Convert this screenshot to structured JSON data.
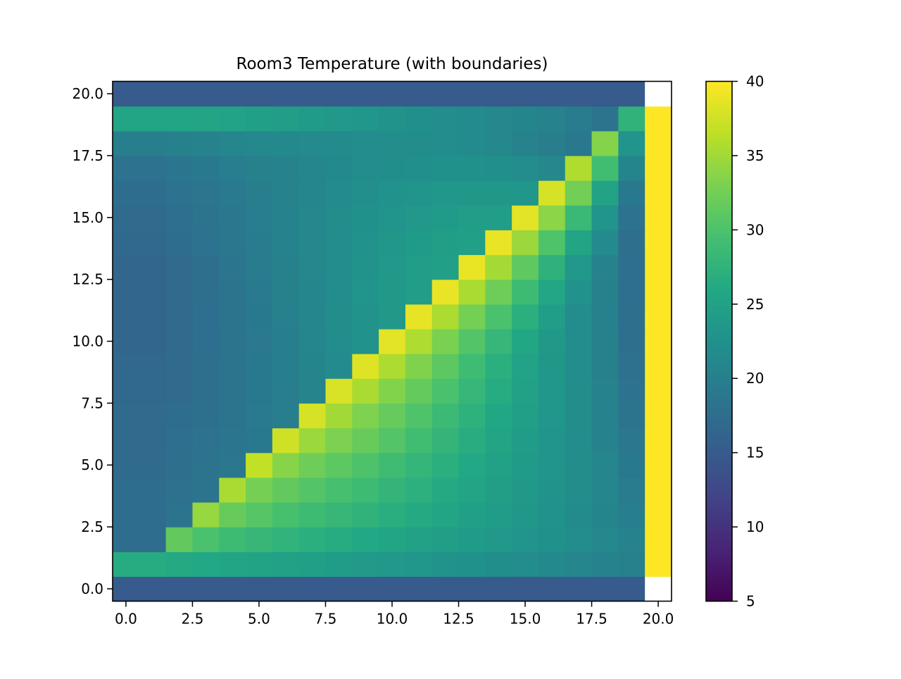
{
  "chart_data": {
    "type": "heatmap",
    "title": "Room3 Temperature (with boundaries)",
    "xlabel": "",
    "ylabel": "",
    "x_range": [
      -0.5,
      20.5
    ],
    "y_range": [
      -0.5,
      20.5
    ],
    "x_ticks": [
      0.0,
      2.5,
      5.0,
      7.5,
      10.0,
      12.5,
      15.0,
      17.5,
      20.0
    ],
    "x_tick_labels": [
      "0.0",
      "2.5",
      "5.0",
      "7.5",
      "10.0",
      "12.5",
      "15.0",
      "17.5",
      "20.0"
    ],
    "y_ticks": [
      0.0,
      2.5,
      5.0,
      7.5,
      10.0,
      12.5,
      15.0,
      17.5,
      20.0
    ],
    "y_tick_labels": [
      "0.0",
      "2.5",
      "5.0",
      "7.5",
      "10.0",
      "12.5",
      "15.0",
      "17.5",
      "20.0"
    ],
    "colormap": "viridis",
    "color_range": [
      5,
      40
    ],
    "colorbar_ticks": [
      5,
      10,
      15,
      20,
      25,
      30,
      35,
      40
    ],
    "colorbar_tick_labels": [
      "5",
      "10",
      "15",
      "20",
      "25",
      "30",
      "35",
      "40"
    ],
    "grid": false,
    "nan_color": "#ffffff",
    "rows_note": "rows listed from y=0 (bottom) to y=20 (top); columns x=0..20; null = blank cell",
    "values": [
      [
        15,
        15,
        15,
        15,
        15,
        15,
        15,
        15,
        15,
        15,
        15,
        15,
        15,
        15,
        15,
        15,
        15,
        15,
        15,
        15,
        null
      ],
      [
        26.5,
        26.5,
        26.2,
        26,
        25.6,
        25.3,
        24.9,
        24.6,
        24.2,
        23.9,
        23.5,
        23.2,
        22.8,
        22.5,
        22.1,
        21.8,
        21.4,
        21,
        20.6,
        20.3,
        40
      ],
      [
        17.5,
        17.5,
        31.5,
        29.8,
        28.9,
        28.2,
        27.6,
        27,
        26.5,
        26,
        25.5,
        25,
        24.5,
        24,
        23.5,
        23,
        22.5,
        22,
        21.3,
        20.5,
        40
      ],
      [
        17.5,
        17.5,
        18.5,
        34.5,
        31.8,
        30.6,
        29.7,
        28.9,
        28.2,
        27.5,
        26.8,
        26.2,
        25.5,
        24.8,
        24.1,
        23.4,
        22.6,
        21.7,
        20.8,
        20,
        40
      ],
      [
        17.5,
        17.5,
        18,
        18.5,
        35.5,
        32.7,
        31.5,
        30.5,
        29.6,
        28.8,
        27.9,
        27.1,
        26.2,
        25.4,
        24.5,
        23.7,
        22.8,
        21.9,
        20.9,
        19.5,
        40
      ],
      [
        17.2,
        17.2,
        17.8,
        18.3,
        18.8,
        36.8,
        33.7,
        32.2,
        31.1,
        30.1,
        29.1,
        28,
        27,
        26,
        25,
        24,
        23,
        21.9,
        20.9,
        19.2,
        40
      ],
      [
        17,
        17,
        17.6,
        18.1,
        18.6,
        19.2,
        37.5,
        34.7,
        33.1,
        31.8,
        30.5,
        29.2,
        27.9,
        26.7,
        25.4,
        24.2,
        23,
        21.8,
        20.6,
        18.8,
        40
      ],
      [
        17,
        17,
        17.4,
        17.9,
        18.5,
        19.1,
        19.8,
        37.8,
        35.1,
        33.2,
        31.7,
        30.2,
        28.7,
        27.3,
        25.9,
        24.6,
        23.2,
        21.9,
        20.5,
        18.5,
        40
      ],
      [
        16.8,
        16.8,
        17.2,
        17.8,
        18.4,
        19.2,
        19.9,
        20.7,
        38,
        35.5,
        33.4,
        31.6,
        29.8,
        28.1,
        26.5,
        24.9,
        23.4,
        21.9,
        20.4,
        18.2,
        40
      ],
      [
        16.8,
        16.8,
        17.2,
        17.7,
        18.4,
        19.2,
        20,
        20.8,
        21.6,
        38.3,
        35.6,
        33.3,
        31.1,
        29,
        27,
        25.1,
        23.4,
        21.8,
        20.3,
        18,
        40
      ],
      [
        16.5,
        16.5,
        17,
        17.6,
        18.3,
        19.1,
        20,
        20.9,
        21.8,
        22.6,
        38.6,
        35.7,
        33,
        30.5,
        28.1,
        25.8,
        23.7,
        21.8,
        20.2,
        17.8,
        40
      ],
      [
        16.5,
        16.5,
        17,
        17.6,
        18.4,
        19.2,
        20.1,
        21,
        21.9,
        22.8,
        23.6,
        38.8,
        35.6,
        32.6,
        29.8,
        27,
        24.4,
        22,
        20.1,
        17.7,
        40
      ],
      [
        16.5,
        16.5,
        17,
        17.7,
        18.5,
        19.3,
        20.2,
        21.1,
        22,
        22.9,
        23.7,
        24.4,
        38.9,
        35.5,
        32.2,
        28.9,
        25.7,
        22.6,
        20.3,
        17.6,
        40
      ],
      [
        16.5,
        16.5,
        17.1,
        17.8,
        18.6,
        19.4,
        20.3,
        21.2,
        22,
        22.8,
        23.6,
        24.3,
        24.8,
        38.9,
        35.2,
        31.3,
        27.4,
        23.6,
        20.6,
        17.6,
        40
      ],
      [
        16.8,
        16.8,
        17.4,
        18.1,
        18.8,
        19.6,
        20.4,
        21.2,
        22,
        22.7,
        23.4,
        24,
        24.5,
        24.8,
        38.9,
        34.8,
        30.2,
        25.4,
        21.5,
        17.7,
        40
      ],
      [
        17,
        17,
        17.6,
        18.3,
        19,
        19.8,
        20.5,
        21.2,
        21.9,
        22.5,
        23.1,
        23.6,
        24,
        24.3,
        24.4,
        38.6,
        33.9,
        28.5,
        22.9,
        18.2,
        40
      ],
      [
        17.5,
        17.5,
        18.1,
        18.7,
        19.3,
        19.9,
        20.5,
        21.1,
        21.6,
        22.2,
        22.6,
        23,
        23.3,
        23.4,
        23.4,
        23.2,
        37.8,
        32.5,
        25.3,
        19.2,
        40
      ],
      [
        18.2,
        18.2,
        18.7,
        19.2,
        19.7,
        20.2,
        20.6,
        21,
        21.4,
        21.8,
        22.1,
        22.4,
        22.5,
        22.5,
        22.4,
        22,
        21.3,
        35.8,
        29.2,
        20.8,
        40
      ],
      [
        20,
        20,
        20.3,
        20.6,
        20.9,
        21.2,
        21.4,
        21.5,
        21.7,
        21.8,
        21.9,
        21.9,
        21.8,
        21.6,
        21.2,
        20.6,
        19.9,
        19,
        33.5,
        23,
        40
      ],
      [
        25.5,
        25.5,
        25.5,
        25.4,
        25.1,
        24.8,
        24.4,
        24,
        23.6,
        23.2,
        22.8,
        22.4,
        22,
        21.6,
        21.2,
        20.8,
        20.4,
        19.5,
        18.5,
        27.5,
        40
      ],
      [
        15,
        15,
        15,
        15,
        15,
        15,
        15,
        15,
        15,
        15,
        15,
        15,
        15,
        15,
        15,
        15,
        15,
        15,
        15,
        15,
        null
      ]
    ]
  }
}
